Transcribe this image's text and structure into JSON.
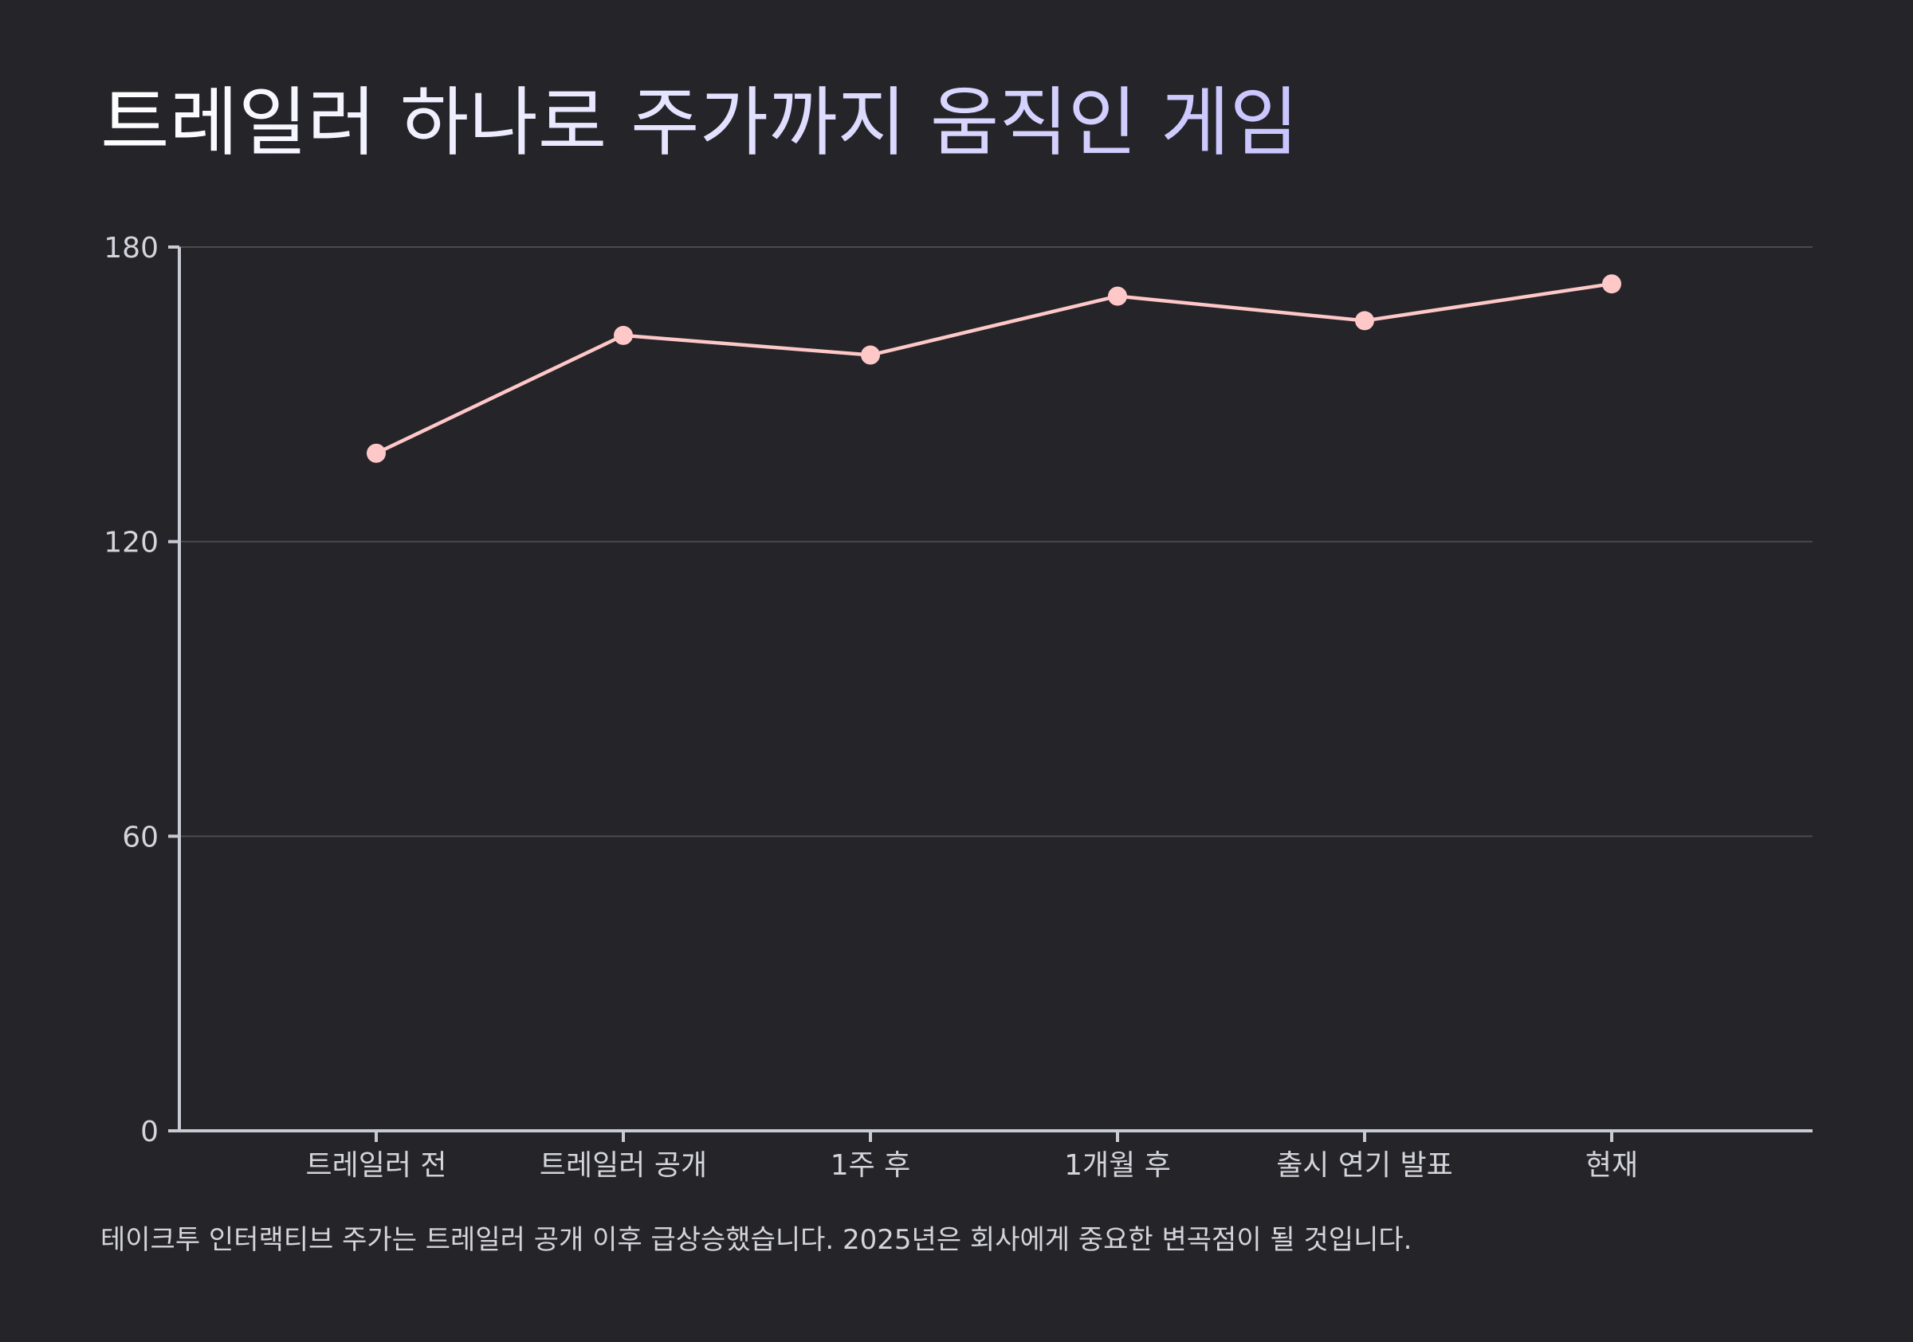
{
  "chart_data": {
    "type": "line",
    "title": "트레일러 하나로 주가까지 움직인 게임",
    "caption": "테이크투 인터랙티브 주가는 트레일러 공개 이후 급상승했습니다. 2025년은 회사에게 중요한 변곡점이 될 것입니다.",
    "categories": [
      "트레일러 전",
      "트레일러 공개",
      "1주 후",
      "1개월 후",
      "출시 연기 발표",
      "현재"
    ],
    "series": [
      {
        "values": [
          138,
          162,
          158,
          170,
          165,
          172.5
        ]
      }
    ],
    "ylim": [
      0,
      180
    ],
    "yticks": [
      0,
      60,
      120,
      180
    ],
    "grid": true,
    "xlabel": "",
    "ylabel": ""
  },
  "colors": {
    "background": "#242429",
    "line": "#ffc8c8",
    "title_start": "#ffffff",
    "title_end": "#c9c5ff",
    "axis": "#c8cad4",
    "grid": "#4a4a50"
  }
}
